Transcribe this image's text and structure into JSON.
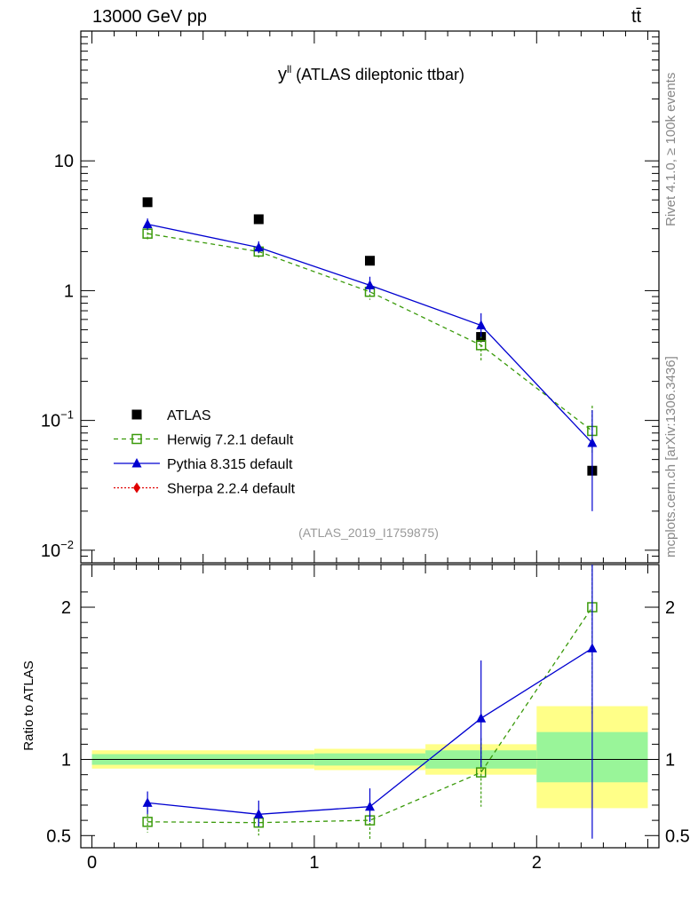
{
  "header": {
    "energy_label": "13000 GeV pp",
    "process_label": "tt̄"
  },
  "side": {
    "rivet_label": "Rivet 4.1.0, ≥ 100k events",
    "source_label": "mcplots.cern.ch [arXiv:1306.3436]"
  },
  "chart_data": {
    "type": "line",
    "title": "y",
    "title_superscript": "ll",
    "title_suffix": " (ATLAS dileptonic ttbar)",
    "analysis_id": "(ATLAS_2019_I1759875)",
    "x_ticks": [
      "0",
      "1",
      "2"
    ],
    "xlim": [
      -0.05,
      2.55
    ],
    "upper": {
      "yscale": "log",
      "ylim": [
        0.008,
        100
      ],
      "y_ticks": [
        {
          "value": 10,
          "base": "10",
          "exp": ""
        },
        {
          "value": 1,
          "base": "1",
          "exp": ""
        },
        {
          "value": 0.1,
          "base": "10",
          "exp": "−1"
        },
        {
          "value": 0.01,
          "base": "10",
          "exp": "−2"
        }
      ]
    },
    "lower": {
      "ylabel": "Ratio to ATLAS",
      "ylim": [
        0.42,
        2.28
      ],
      "y_ticks": [
        "0.5",
        "1",
        "2"
      ],
      "y_tick_values": [
        0.5,
        1,
        2
      ]
    },
    "bins": [
      {
        "lo": 0.0,
        "hi": 1.0,
        "center": 0.25,
        "band_inner": [
          0.965,
          1.035
        ],
        "band_outer": [
          0.94,
          1.06
        ]
      },
      {
        "lo": 1.0,
        "hi": 1.5,
        "center": 1.25,
        "band_inner": [
          0.96,
          1.04
        ],
        "band_outer": [
          0.93,
          1.07
        ]
      },
      {
        "lo": 1.5,
        "hi": 2.0,
        "center": 1.75,
        "band_inner": [
          0.94,
          1.06
        ],
        "band_outer": [
          0.9,
          1.1
        ]
      },
      {
        "lo": 2.0,
        "hi": 2.5,
        "center": 2.25,
        "band_inner": [
          0.85,
          1.18
        ],
        "band_outer": [
          0.68,
          1.35
        ]
      }
    ],
    "series": [
      {
        "name": "ATLAS",
        "legend": "ATLAS",
        "color": "#000000",
        "marker": "square",
        "x": [
          0.25,
          0.75,
          1.25,
          1.75,
          2.25
        ],
        "values": [
          4.8,
          3.55,
          1.7,
          0.44,
          0.041
        ]
      },
      {
        "name": "Herwig",
        "legend": "Herwig 7.2.1 default",
        "color": "#3a9a0a",
        "marker": "open-square",
        "dash": "5,4",
        "x": [
          0.25,
          0.75,
          1.25,
          1.75,
          2.25
        ],
        "values": [
          2.75,
          2.0,
          0.98,
          0.38,
          0.083
        ],
        "err_lo": [
          2.45,
          1.8,
          0.85,
          0.29,
          0.055
        ],
        "err_hi": [
          3.05,
          2.2,
          1.1,
          0.45,
          0.13
        ],
        "ratio": [
          0.59,
          0.585,
          0.6,
          0.915,
          2.0
        ],
        "ratio_lo": [
          0.52,
          0.5,
          0.475,
          0.69,
          1.3
        ],
        "ratio_hi": [
          0.67,
          0.66,
          0.7,
          1.14,
          2.28
        ]
      },
      {
        "name": "Pythia",
        "legend": "Pythia 8.315 default",
        "color": "#0000d0",
        "marker": "triangle",
        "dash": "",
        "x": [
          0.25,
          0.75,
          1.25,
          1.75,
          2.25
        ],
        "values": [
          3.25,
          2.15,
          1.1,
          0.54,
          0.067
        ],
        "err_lo": [
          2.95,
          1.95,
          0.97,
          0.44,
          0.02
        ],
        "err_hi": [
          3.6,
          2.4,
          1.28,
          0.67,
          0.12
        ],
        "ratio": [
          0.715,
          0.64,
          0.69,
          1.27,
          1.73
        ],
        "ratio_lo": [
          0.64,
          0.56,
          0.59,
          0.95,
          0.48
        ],
        "ratio_hi": [
          0.79,
          0.73,
          0.81,
          1.65,
          2.28
        ]
      },
      {
        "name": "Sherpa",
        "legend": "Sherpa 2.2.4 default",
        "color": "#e00000",
        "marker": "diamond",
        "dash": "2,2",
        "x": [],
        "values": []
      }
    ]
  }
}
